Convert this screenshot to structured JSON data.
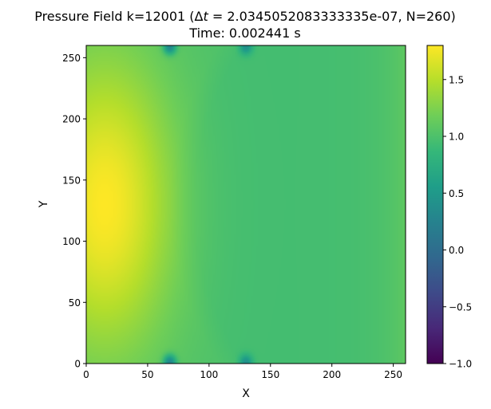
{
  "chart_data": {
    "type": "heatmap",
    "title": "Pressure Field k=12001 (Δt = 2.0345052083333335e-07, N=260)",
    "title_parts": {
      "prefix": "Pressure Field k=12001 (Δ",
      "italic": "t",
      "suffix": " = 2.0345052083333335e-07, N=260)"
    },
    "subtitle": "Time: 0.002441 s",
    "xlabel": "X",
    "ylabel": "Y",
    "xlim": [
      0,
      260
    ],
    "ylim": [
      0,
      260
    ],
    "x_ticks": [
      0,
      50,
      100,
      150,
      200,
      250
    ],
    "y_ticks": [
      0,
      50,
      100,
      150,
      200,
      250
    ],
    "grid": false,
    "colormap": "viridis",
    "colorbar": {
      "range": [
        -1.0,
        1.8
      ],
      "ticks": [
        1.5,
        1.0,
        0.5,
        0.0,
        -0.5,
        -1.0
      ],
      "tick_labels": [
        "1.5",
        "1.0",
        "0.5",
        "0.0",
        "−0.5",
        "−1.0"
      ]
    },
    "field_description": {
      "peak_value": 1.8,
      "peak_location": [
        15,
        130
      ],
      "background_value": 1.0,
      "right_edge_value": 1.15,
      "wavefront_x": 68,
      "dips": [
        {
          "x": 68,
          "y": 1,
          "value": 0.2
        },
        {
          "x": 68,
          "y": 259,
          "value": 0.2
        },
        {
          "x": 130,
          "y": 1,
          "value": 0.45
        },
        {
          "x": 130,
          "y": 259,
          "value": 0.45
        }
      ]
    }
  }
}
